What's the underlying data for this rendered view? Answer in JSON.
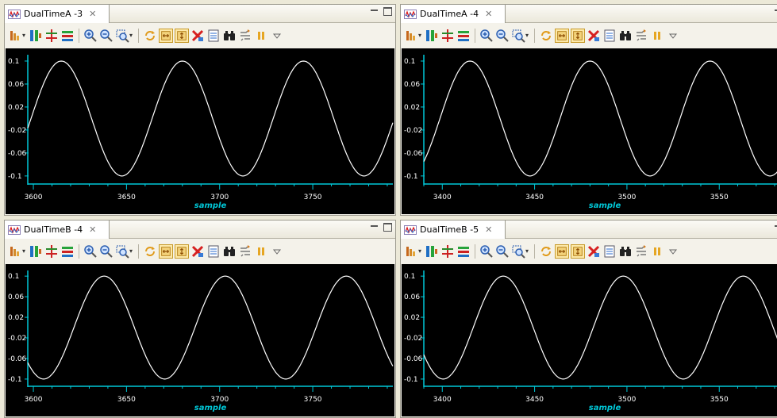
{
  "views": [
    {
      "tab_title": "DualTimeA -3",
      "chart_data": {
        "type": "line",
        "xlabel": "sample",
        "ylabel": "",
        "xlim": [
          3597,
          3793
        ],
        "ylim": [
          -0.114,
          0.111
        ],
        "xticks": [
          {
            "v": 3600,
            "label": "3600"
          },
          {
            "v": 3650,
            "label": "3650"
          },
          {
            "v": 3700,
            "label": "3700"
          },
          {
            "v": 3750,
            "label": "3750"
          }
        ],
        "yticks": [
          {
            "v": 0.1,
            "label": "0.1"
          },
          {
            "v": 0.06,
            "label": "0.06"
          },
          {
            "v": 0.02,
            "label": "0.02"
          },
          {
            "v": -0.02,
            "label": "-0.02"
          },
          {
            "v": -0.06,
            "label": "-0.06"
          },
          {
            "v": -0.1,
            "label": "-0.1"
          }
        ],
        "series": [
          {
            "amplitude": 0.1,
            "period": 65,
            "peak_at": 3615
          }
        ]
      }
    },
    {
      "tab_title": "DualTimeA -4",
      "chart_data": {
        "type": "line",
        "xlabel": "sample",
        "ylabel": "",
        "xlim": [
          3390,
          3586
        ],
        "ylim": [
          -0.114,
          0.111
        ],
        "xticks": [
          {
            "v": 3400,
            "label": "3400"
          },
          {
            "v": 3450,
            "label": "3450"
          },
          {
            "v": 3500,
            "label": "3500"
          },
          {
            "v": 3550,
            "label": "3550"
          }
        ],
        "yticks": [
          {
            "v": 0.1,
            "label": "0.1"
          },
          {
            "v": 0.06,
            "label": "0.06"
          },
          {
            "v": 0.02,
            "label": "0.02"
          },
          {
            "v": -0.02,
            "label": "-0.02"
          },
          {
            "v": -0.06,
            "label": "-0.06"
          },
          {
            "v": -0.1,
            "label": "-0.1"
          }
        ],
        "series": [
          {
            "amplitude": 0.1,
            "period": 65,
            "peak_at": 3415
          }
        ]
      }
    },
    {
      "tab_title": "DualTimeB -4",
      "chart_data": {
        "type": "line",
        "xlabel": "sample",
        "ylabel": "",
        "xlim": [
          3597,
          3793
        ],
        "ylim": [
          -0.114,
          0.111
        ],
        "xticks": [
          {
            "v": 3600,
            "label": "3600"
          },
          {
            "v": 3650,
            "label": "3650"
          },
          {
            "v": 3700,
            "label": "3700"
          },
          {
            "v": 3750,
            "label": "3750"
          }
        ],
        "yticks": [
          {
            "v": 0.1,
            "label": "0.1"
          },
          {
            "v": 0.06,
            "label": "0.06"
          },
          {
            "v": 0.02,
            "label": "0.02"
          },
          {
            "v": -0.02,
            "label": "-0.02"
          },
          {
            "v": -0.06,
            "label": "-0.06"
          },
          {
            "v": -0.1,
            "label": "-0.1"
          }
        ],
        "series": [
          {
            "amplitude": 0.1,
            "period": 65,
            "peak_at": 3638
          }
        ]
      }
    },
    {
      "tab_title": "DualTimeB -5",
      "chart_data": {
        "type": "line",
        "xlabel": "sample",
        "ylabel": "",
        "xlim": [
          3390,
          3586
        ],
        "ylim": [
          -0.114,
          0.111
        ],
        "xticks": [
          {
            "v": 3400,
            "label": "3400"
          },
          {
            "v": 3450,
            "label": "3450"
          },
          {
            "v": 3500,
            "label": "3500"
          },
          {
            "v": 3550,
            "label": "3550"
          }
        ],
        "yticks": [
          {
            "v": 0.1,
            "label": "0.1"
          },
          {
            "v": 0.06,
            "label": "0.06"
          },
          {
            "v": 0.02,
            "label": "0.02"
          },
          {
            "v": -0.02,
            "label": "-0.02"
          },
          {
            "v": -0.06,
            "label": "-0.06"
          },
          {
            "v": -0.1,
            "label": "-0.1"
          }
        ],
        "series": [
          {
            "amplitude": 0.1,
            "period": 65,
            "peak_at": 3433
          }
        ]
      }
    }
  ],
  "colors": {
    "plot_background": "#000000",
    "trace": "#ffffff",
    "axis": "#00c8d8",
    "tick_label": "#ffffff",
    "axis_label": "#00c8d8"
  },
  "toolbar_icons": [
    "data-source-icon",
    "show-values-icon",
    "crosshair-icon",
    "legend-icon",
    "zoom-in-icon",
    "zoom-out-icon",
    "zoom-region-icon",
    "refresh-icon",
    "auto-scale-x-icon",
    "auto-scale-y-icon",
    "clear-icon",
    "properties-icon",
    "find-icon",
    "settings-icon",
    "pause-icon",
    "view-menu-icon"
  ]
}
